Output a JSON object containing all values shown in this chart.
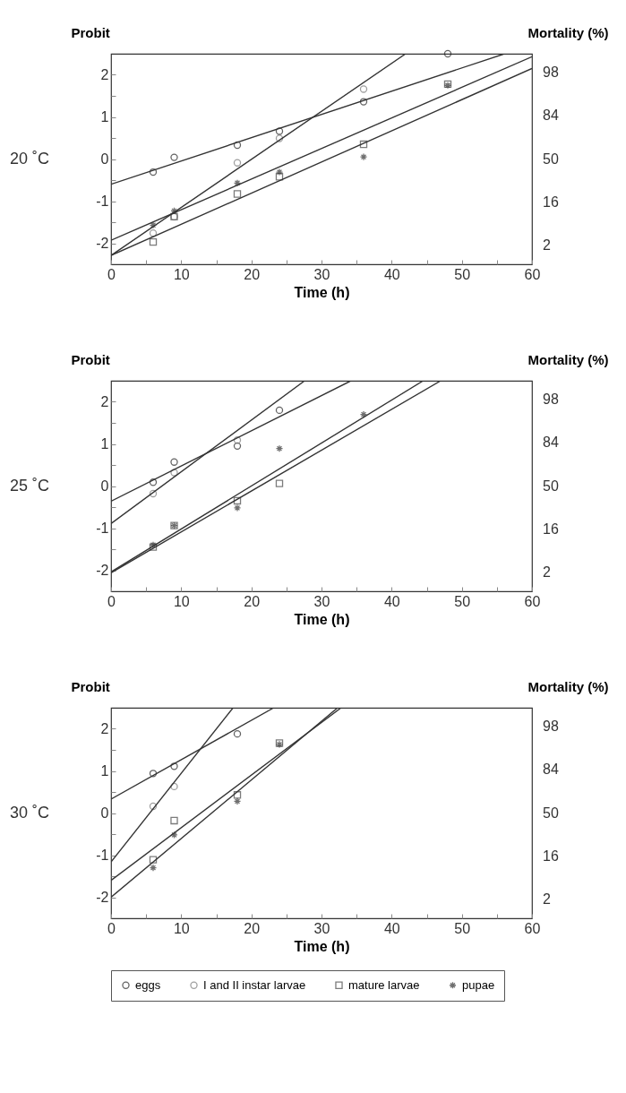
{
  "chart_data": [
    {
      "type": "scatter",
      "title": "20 ˚C",
      "xlabel": "Time (h)",
      "ylabel": "Probit",
      "y2label": "Mortality (%)",
      "legend": "bottom",
      "annotations": [
        "2",
        "16",
        "50",
        "84",
        "98"
      ],
      "xlim": [
        0,
        60
      ],
      "xticks": [
        0,
        {
          "value": 5,
          "label": null
        },
        10,
        {
          "value": 15,
          "label": null
        },
        20,
        {
          "value": 25,
          "label": null
        },
        30,
        {
          "value": 35,
          "label": null
        },
        40,
        {
          "value": 45,
          "label": null
        },
        50,
        {
          "value": 55,
          "label": null
        },
        60
      ],
      "ylim": [
        -2.5,
        2.5
      ],
      "yticks": [
        -2,
        {
          "value": -1.5,
          "label": null
        },
        -1,
        {
          "value": -0.5,
          "label": null
        },
        0,
        {
          "value": 0.5,
          "label": null
        },
        1,
        {
          "value": 1.5,
          "label": null
        },
        2
      ],
      "series": [
        {
          "type": "scatter",
          "name": "eggs",
          "color": "#222222",
          "marker": "circle",
          "x": [
            6,
            9,
            18,
            24,
            36,
            48
          ],
          "values": [
            -0.31,
            0.04,
            0.33,
            0.66,
            1.36,
            2.5
          ]
        },
        {
          "type": "scatter",
          "name": "I and II instar larvae",
          "color": "#777777",
          "marker": "circle",
          "x": [
            6,
            9,
            18,
            24,
            36
          ],
          "values": [
            -1.76,
            -1.37,
            -0.09,
            0.49,
            1.66
          ]
        },
        {
          "type": "scatter",
          "name": "mature larvae",
          "color": "#444444",
          "marker": "square",
          "x": [
            6,
            9,
            18,
            24,
            36,
            48
          ],
          "values": [
            -1.97,
            -1.37,
            -0.83,
            -0.42,
            0.35,
            1.78
          ]
        },
        {
          "type": "scatter",
          "name": "pupae",
          "color": "#333333",
          "marker": "cross",
          "x": [
            6,
            9,
            18,
            24,
            36,
            48
          ],
          "values": [
            -1.57,
            -1.23,
            -0.57,
            -0.31,
            0.05,
            1.75
          ]
        },
        {
          "type": "line",
          "color": "#333333",
          "x": [
            0,
            56.1
          ],
          "values": [
            -0.6,
            2.5
          ]
        },
        {
          "type": "line",
          "color": "#333333",
          "x": [
            0,
            42
          ],
          "values": [
            -2.29,
            2.5
          ]
        },
        {
          "type": "line",
          "color": "#333333",
          "x": [
            0,
            60
          ],
          "values": [
            -2.29,
            2.15
          ]
        },
        {
          "type": "line",
          "color": "#333333",
          "x": [
            0,
            60
          ],
          "values": [
            -1.93,
            2.43
          ]
        }
      ]
    },
    {
      "type": "scatter",
      "title": "25 ˚C",
      "xlabel": "Time (h)",
      "ylabel": "Probit",
      "y2label": "Mortality (%)",
      "legend": "bottom",
      "annotations": [
        "2",
        "16",
        "50",
        "84",
        "98"
      ],
      "xlim": [
        0,
        60
      ],
      "xticks": [
        0,
        {
          "value": 5,
          "label": null
        },
        10,
        {
          "value": 15,
          "label": null
        },
        20,
        {
          "value": 25,
          "label": null
        },
        30,
        {
          "value": 35,
          "label": null
        },
        40,
        {
          "value": 45,
          "label": null
        },
        50,
        {
          "value": 55,
          "label": null
        },
        60
      ],
      "ylim": [
        -2.5,
        2.5
      ],
      "yticks": [
        -2,
        {
          "value": -1.5,
          "label": null
        },
        -1,
        {
          "value": -0.5,
          "label": null
        },
        0,
        {
          "value": 0.5,
          "label": null
        },
        1,
        {
          "value": 1.5,
          "label": null
        },
        2
      ],
      "series": [
        {
          "type": "scatter",
          "name": "eggs",
          "color": "#222222",
          "marker": "circle",
          "x": [
            6,
            9,
            18,
            24
          ],
          "values": [
            0.09,
            0.57,
            0.95,
            1.8
          ]
        },
        {
          "type": "scatter",
          "name": "I and II instar larvae",
          "color": "#777777",
          "marker": "circle",
          "x": [
            6,
            9,
            18
          ],
          "values": [
            -0.18,
            0.32,
            1.09
          ]
        },
        {
          "type": "scatter",
          "name": "mature larvae",
          "color": "#444444",
          "marker": "square",
          "x": [
            6,
            9,
            18,
            24
          ],
          "values": [
            -1.45,
            -0.94,
            -0.35,
            0.06
          ]
        },
        {
          "type": "scatter",
          "name": "pupae",
          "color": "#333333",
          "marker": "cross",
          "x": [
            6,
            9,
            18,
            24,
            36
          ],
          "values": [
            -1.4,
            -0.94,
            -0.52,
            0.89,
            1.7
          ]
        },
        {
          "type": "line",
          "color": "#333333",
          "x": [
            0,
            34.2
          ],
          "values": [
            -0.36,
            2.5
          ]
        },
        {
          "type": "line",
          "color": "#333333",
          "x": [
            0,
            27.6
          ],
          "values": [
            -0.89,
            2.5
          ]
        },
        {
          "type": "line",
          "color": "#333333",
          "x": [
            0,
            47
          ],
          "values": [
            -2.06,
            2.5
          ]
        },
        {
          "type": "line",
          "color": "#333333",
          "x": [
            0,
            44.5
          ],
          "values": [
            -2.04,
            2.5
          ]
        }
      ]
    },
    {
      "type": "scatter",
      "title": "30 ˚C",
      "xlabel": "Time (h)",
      "ylabel": "Probit",
      "y2label": "Mortality (%)",
      "legend": "bottom",
      "annotations": [
        "2",
        "16",
        "50",
        "84",
        "98"
      ],
      "xlim": [
        0,
        60
      ],
      "xticks": [
        0,
        {
          "value": 5,
          "label": null
        },
        10,
        {
          "value": 15,
          "label": null
        },
        20,
        {
          "value": 25,
          "label": null
        },
        30,
        {
          "value": 35,
          "label": null
        },
        40,
        {
          "value": 45,
          "label": null
        },
        50,
        {
          "value": 55,
          "label": null
        },
        60
      ],
      "ylim": [
        -2.5,
        2.5
      ],
      "yticks": [
        -2,
        {
          "value": -1.5,
          "label": null
        },
        -1,
        {
          "value": -0.5,
          "label": null
        },
        0,
        {
          "value": 0.5,
          "label": null
        },
        1,
        {
          "value": 1.5,
          "label": null
        },
        2
      ],
      "series": [
        {
          "type": "scatter",
          "name": "eggs",
          "color": "#222222",
          "marker": "circle",
          "x": [
            6,
            9,
            18
          ],
          "values": [
            0.94,
            1.11,
            1.88
          ]
        },
        {
          "type": "scatter",
          "name": "I and II instar larvae",
          "color": "#777777",
          "marker": "circle",
          "x": [
            6,
            9
          ],
          "values": [
            0.16,
            0.63
          ]
        },
        {
          "type": "scatter",
          "name": "mature larvae",
          "color": "#444444",
          "marker": "square",
          "x": [
            6,
            9,
            18,
            24
          ],
          "values": [
            -1.11,
            -0.18,
            0.43,
            1.66
          ]
        },
        {
          "type": "scatter",
          "name": "pupae",
          "color": "#333333",
          "marker": "cross",
          "x": [
            6,
            9,
            18,
            24
          ],
          "values": [
            -1.3,
            -0.52,
            0.28,
            1.63
          ]
        },
        {
          "type": "line",
          "color": "#333333",
          "x": [
            0,
            23.2
          ],
          "values": [
            0.33,
            2.5
          ]
        },
        {
          "type": "line",
          "color": "#333333",
          "x": [
            0,
            17.4
          ],
          "values": [
            -1.16,
            2.5
          ]
        },
        {
          "type": "line",
          "color": "#333333",
          "x": [
            0,
            32.8
          ],
          "values": [
            -1.6,
            2.5
          ]
        },
        {
          "type": "line",
          "color": "#333333",
          "x": [
            0,
            32.3
          ],
          "values": [
            -2.0,
            2.5
          ]
        }
      ]
    }
  ]
}
